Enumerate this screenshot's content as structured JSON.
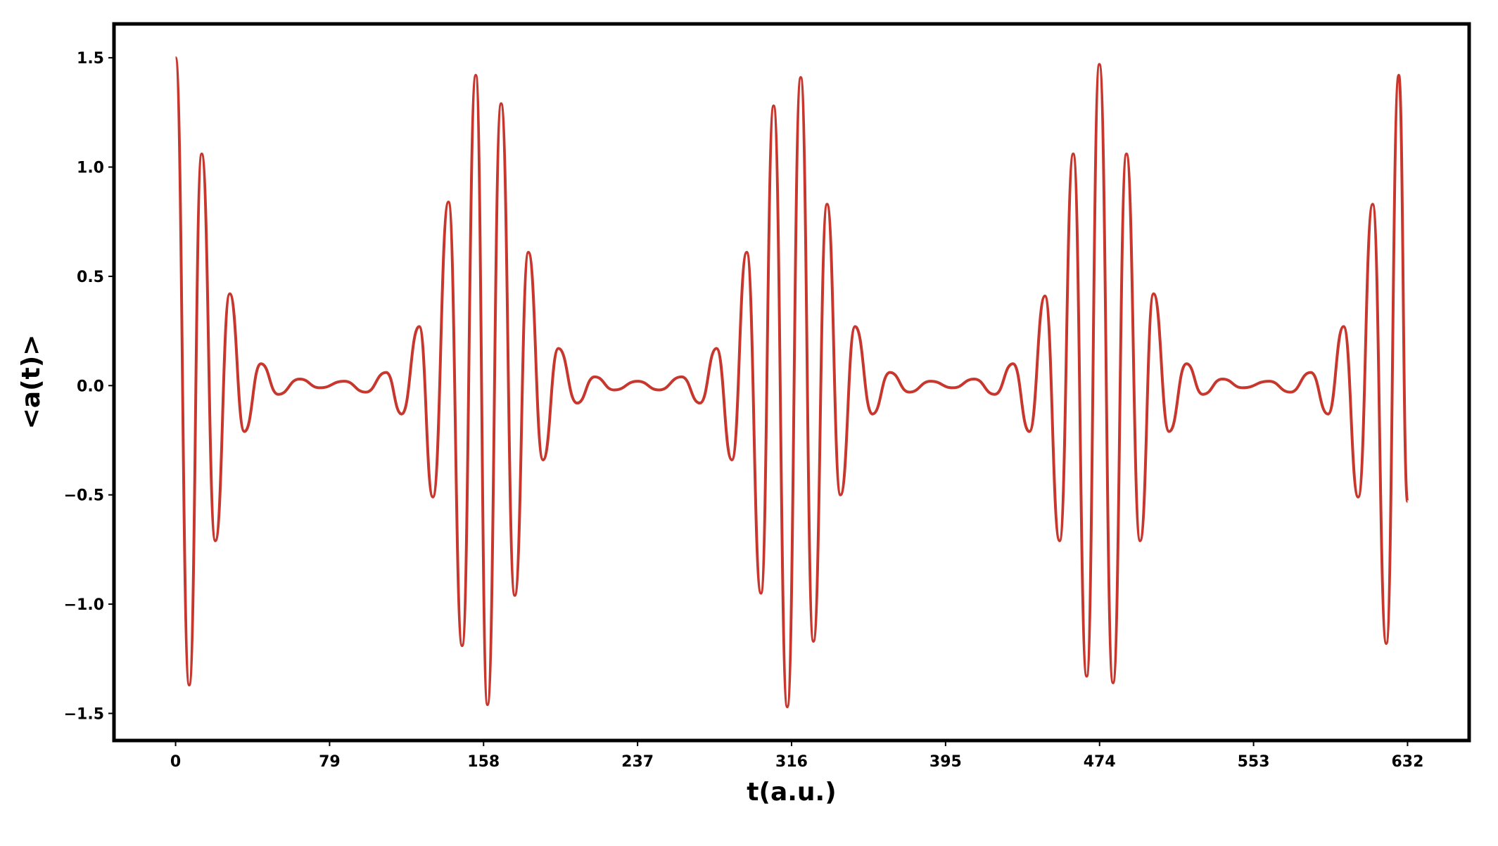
{
  "chart_data": {
    "type": "line",
    "xlabel": "t(a.u.)",
    "ylabel": "<a(t)>",
    "x": [
      0,
      7,
      13.4,
      20.4,
      27.8,
      35.3,
      43.8,
      52.7,
      63.6,
      74,
      86.5,
      97.5,
      108,
      116,
      125,
      132,
      140,
      147,
      154,
      160,
      167,
      174,
      181,
      188.5,
      196.4,
      206,
      215,
      225,
      237,
      248,
      259.6,
      269,
      277.5,
      285.4,
      293,
      300.3,
      306.8,
      313.8,
      320.7,
      327.2,
      334.2,
      341.1,
      348.6,
      357.5,
      366.5,
      376.4,
      387.4,
      398.8,
      409.7,
      420.2,
      429.6,
      438,
      446,
      453.5,
      460.5,
      467.4,
      473.9,
      480.9,
      487.8,
      494.8,
      501.7,
      509.7,
      518.6,
      527,
      537,
      547.5,
      560.9,
      571.8,
      582.3,
      591.2,
      599.2,
      606.7,
      614.1,
      621.1,
      627.5,
      632
    ],
    "series": [
      {
        "color": "#c8372d",
        "values": [
          1.5,
          -1.37,
          1.06,
          -0.71,
          0.42,
          -0.21,
          0.1,
          -0.04,
          0.03,
          -0.01,
          0.02,
          -0.03,
          0.06,
          -0.13,
          0.27,
          -0.51,
          0.84,
          -1.19,
          1.42,
          -1.46,
          1.29,
          -0.96,
          0.61,
          -0.34,
          0.17,
          -0.08,
          0.04,
          -0.02,
          0.02,
          -0.02,
          0.04,
          -0.08,
          0.17,
          -0.34,
          0.61,
          -0.95,
          1.28,
          -1.47,
          1.41,
          -1.17,
          0.83,
          -0.5,
          0.27,
          -0.13,
          0.06,
          -0.03,
          0.02,
          -0.01,
          0.03,
          -0.04,
          0.1,
          -0.21,
          0.41,
          -0.71,
          1.06,
          -1.33,
          1.47,
          -1.36,
          1.06,
          -0.71,
          0.42,
          -0.21,
          0.1,
          -0.04,
          0.03,
          -0.01,
          0.02,
          -0.03,
          0.06,
          -0.13,
          0.27,
          -0.51,
          0.83,
          -1.18,
          1.42,
          -0.53
        ]
      }
    ],
    "xlim": [
      -31.6,
      663.6
    ],
    "ylim": [
      -1.624,
      1.655
    ],
    "xticks": [
      0,
      79,
      158,
      237,
      316,
      395,
      474,
      553,
      632
    ],
    "yticks": [
      {
        "value": -1.5,
        "label": "−1.5"
      },
      {
        "value": -1.0,
        "label": "−1.0"
      },
      {
        "value": -0.5,
        "label": "−0.5"
      },
      {
        "value": 0.0,
        "label": "0.0"
      },
      0.5,
      {
        "value": 1.0,
        "label": "1.0"
      },
      1.5
    ]
  }
}
